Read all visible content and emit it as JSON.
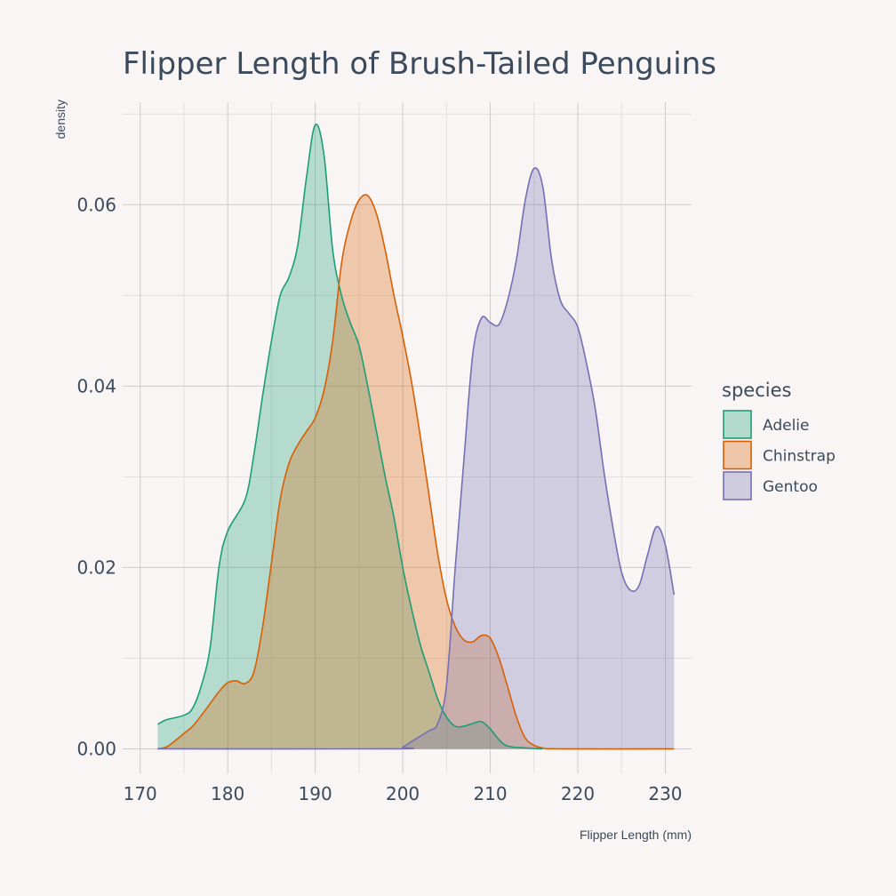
{
  "chart_data": {
    "type": "area",
    "title": "Flipper Length of Brush-Tailed Penguins",
    "xlabel": "Flipper Length (mm)",
    "ylabel": "density",
    "xlim": [
      168,
      233
    ],
    "ylim": [
      -0.0027,
      0.0713
    ],
    "x_ticks": [
      170,
      180,
      190,
      200,
      210,
      220,
      230
    ],
    "y_ticks": [
      0.0,
      0.02,
      0.04,
      0.06
    ],
    "y_tick_labels": [
      "0.00",
      "0.02",
      "0.04",
      "0.06"
    ],
    "grid": true,
    "legend": {
      "title": "species",
      "position": "right"
    },
    "series": [
      {
        "name": "Adelie",
        "color": "#1b9e77",
        "fill": "#b4dace",
        "points": [
          [
            172,
            0.0027
          ],
          [
            173,
            0.0032
          ],
          [
            175,
            0.0037
          ],
          [
            176,
            0.0045
          ],
          [
            177,
            0.007
          ],
          [
            178,
            0.0112
          ],
          [
            179,
            0.02
          ],
          [
            180,
            0.024
          ],
          [
            182,
            0.0275
          ],
          [
            183,
            0.0325
          ],
          [
            184,
            0.039
          ],
          [
            185,
            0.045
          ],
          [
            186,
            0.05
          ],
          [
            187,
            0.052
          ],
          [
            188,
            0.0555
          ],
          [
            189,
            0.063
          ],
          [
            190,
            0.0688
          ],
          [
            191,
            0.0655
          ],
          [
            192,
            0.055
          ],
          [
            193,
            0.05
          ],
          [
            194,
            0.047
          ],
          [
            195,
            0.0445
          ],
          [
            196,
            0.04
          ],
          [
            197,
            0.035
          ],
          [
            198,
            0.03
          ],
          [
            199,
            0.0255
          ],
          [
            200,
            0.02
          ],
          [
            201,
            0.0155
          ],
          [
            202,
            0.0115
          ],
          [
            203,
            0.0085
          ],
          [
            204,
            0.0055
          ],
          [
            205,
            0.0035
          ],
          [
            206,
            0.0025
          ],
          [
            207,
            0.0025
          ],
          [
            208,
            0.0028
          ],
          [
            209,
            0.003
          ],
          [
            210,
            0.0022
          ],
          [
            211,
            0.001
          ],
          [
            212,
            0.0003
          ],
          [
            214,
            0.0001
          ],
          [
            216,
            0
          ]
        ]
      },
      {
        "name": "Chinstrap",
        "color": "#d95f02",
        "fill": "#eec6a9",
        "points": [
          [
            172,
            0
          ],
          [
            173,
            0.0002
          ],
          [
            174,
            0.0009
          ],
          [
            175,
            0.0017
          ],
          [
            176,
            0.0025
          ],
          [
            177,
            0.0037
          ],
          [
            178,
            0.005
          ],
          [
            179,
            0.0063
          ],
          [
            180,
            0.0073
          ],
          [
            181,
            0.0075
          ],
          [
            182,
            0.0072
          ],
          [
            183,
            0.0085
          ],
          [
            184,
            0.0135
          ],
          [
            185,
            0.0205
          ],
          [
            186,
            0.0275
          ],
          [
            187,
            0.0315
          ],
          [
            188,
            0.0335
          ],
          [
            189,
            0.035
          ],
          [
            190,
            0.0365
          ],
          [
            191,
            0.0395
          ],
          [
            192,
            0.045
          ],
          [
            193,
            0.0535
          ],
          [
            194,
            0.058
          ],
          [
            195,
            0.0605
          ],
          [
            196,
            0.061
          ],
          [
            197,
            0.059
          ],
          [
            198,
            0.055
          ],
          [
            199,
            0.05
          ],
          [
            200,
            0.0455
          ],
          [
            201,
            0.0405
          ],
          [
            202,
            0.0345
          ],
          [
            203,
            0.028
          ],
          [
            204,
            0.0215
          ],
          [
            205,
            0.0165
          ],
          [
            206,
            0.0135
          ],
          [
            207,
            0.012
          ],
          [
            208,
            0.0118
          ],
          [
            209,
            0.0125
          ],
          [
            210,
            0.0122
          ],
          [
            211,
            0.01
          ],
          [
            212,
            0.0068
          ],
          [
            213,
            0.0035
          ],
          [
            214,
            0.0012
          ],
          [
            215,
            0.0004
          ],
          [
            216,
            0.0001
          ],
          [
            218,
            0
          ],
          [
            231,
            0
          ]
        ]
      },
      {
        "name": "Gentoo",
        "color": "#7570b3",
        "fill": "#cfcce0",
        "points": [
          [
            172,
            0
          ],
          [
            199,
            0
          ],
          [
            200,
            0.0002
          ],
          [
            201,
            0.0008
          ],
          [
            202,
            0.0014
          ],
          [
            203,
            0.002
          ],
          [
            204,
            0.0028
          ],
          [
            205,
            0.007
          ],
          [
            206,
            0.02
          ],
          [
            207,
            0.032
          ],
          [
            208,
            0.0435
          ],
          [
            209,
            0.0475
          ],
          [
            210,
            0.047
          ],
          [
            211,
            0.0468
          ],
          [
            212,
            0.0495
          ],
          [
            213,
            0.054
          ],
          [
            214,
            0.0605
          ],
          [
            215,
            0.064
          ],
          [
            216,
            0.062
          ],
          [
            217,
            0.054
          ],
          [
            218,
            0.0495
          ],
          [
            219,
            0.048
          ],
          [
            220,
            0.0465
          ],
          [
            221,
            0.0425
          ],
          [
            222,
            0.0375
          ],
          [
            223,
            0.0305
          ],
          [
            224,
            0.0245
          ],
          [
            225,
            0.0195
          ],
          [
            226,
            0.0175
          ],
          [
            227,
            0.018
          ],
          [
            228,
            0.0215
          ],
          [
            229,
            0.0245
          ],
          [
            230,
            0.0225
          ],
          [
            231,
            0.017
          ]
        ]
      }
    ]
  }
}
